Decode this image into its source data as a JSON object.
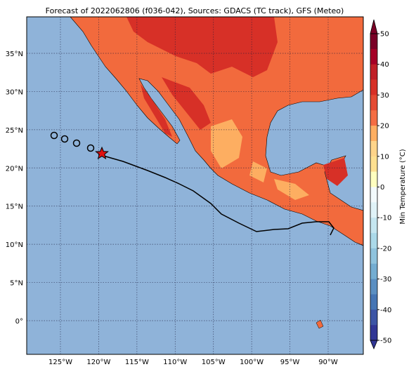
{
  "map": {
    "title": "Forecast of 2022062806 (f036-042), Sources: GDACS (TC track), GFS (Meteo)",
    "lon_ticks": [
      {
        "value": -125,
        "label": "125°W"
      },
      {
        "value": -120,
        "label": "120°W"
      },
      {
        "value": -115,
        "label": "115°W"
      },
      {
        "value": -110,
        "label": "110°W"
      },
      {
        "value": -105,
        "label": "105°W"
      },
      {
        "value": -100,
        "label": "100°W"
      },
      {
        "value": -95,
        "label": "95°W"
      },
      {
        "value": -90,
        "label": "90°W"
      }
    ],
    "lat_ticks": [
      {
        "value": 35,
        "label": "35°N"
      },
      {
        "value": 30,
        "label": "30°N"
      },
      {
        "value": 25,
        "label": "25°N"
      },
      {
        "value": 20,
        "label": "20°N"
      },
      {
        "value": 15,
        "label": "15°N"
      },
      {
        "value": 10,
        "label": "10°N"
      },
      {
        "value": 5,
        "label": "5°N"
      },
      {
        "value": 0,
        "label": "0°"
      }
    ],
    "colorbar": {
      "label": "Min Temperature (°C)",
      "ticks": [
        50,
        40,
        30,
        20,
        10,
        0,
        -10,
        -20,
        -30,
        -40,
        -50
      ],
      "colors": [
        "#7a0026",
        "#a50026",
        "#c01f27",
        "#d73027",
        "#e44a33",
        "#f46d43",
        "#fdae61",
        "#fed48a",
        "#fee090",
        "#ffffbf",
        "#f3fafc",
        "#e0f3f8",
        "#c5e6f0",
        "#abd9e9",
        "#8fc3dd",
        "#74add1",
        "#5b8fc2",
        "#4575b4",
        "#3d55a5",
        "#313695"
      ]
    }
  }
}
